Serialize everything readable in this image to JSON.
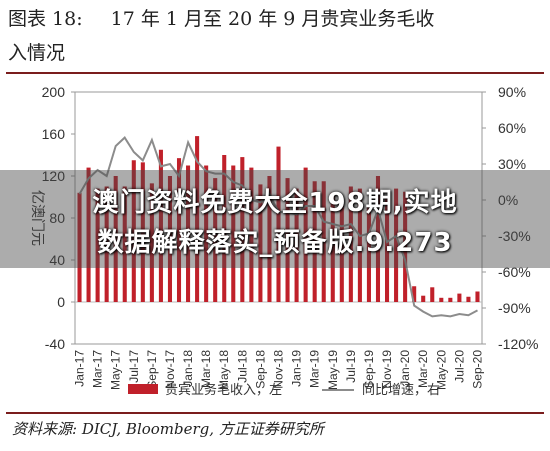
{
  "figure": {
    "label": "图表 18:",
    "title_line1": "17 年 1 月至 20 年 9 月贵宾业务毛收",
    "title_line2": "入情况",
    "source": "资料来源: DICJ, Bloomberg, 方正证券研究所"
  },
  "overlay": {
    "line1": "澳门资料免费大全198期,实地",
    "line2": "数据解释落实_预备版.9.273"
  },
  "colors": {
    "bar": "#c0202a",
    "line": "#8c8c8c",
    "rule": "#7a1d1d"
  },
  "chart_data": {
    "type": "bar",
    "title": "",
    "ylabel": "亿澳门元",
    "ylim": [
      -40,
      200
    ],
    "y_ticks": [
      -40,
      0,
      40,
      80,
      120,
      160,
      200
    ],
    "y2lim": [
      -1.2,
      0.9
    ],
    "y2_ticks": [
      "90%",
      "60%",
      "30%",
      "0%",
      "-30%",
      "-60%",
      "-90%",
      "-120%"
    ],
    "y2_tick_values": [
      0.9,
      0.6,
      0.3,
      0.0,
      -0.3,
      -0.6,
      -0.9,
      -1.2
    ],
    "grid": false,
    "legend_position": "bottom",
    "x_tick_labels": [
      "Jan-17",
      "Mar-17",
      "May-17",
      "Jul-17",
      "Sep-17",
      "Nov-17",
      "Jan-18",
      "Mar-18",
      "May-18",
      "Jul-18",
      "Sep-18",
      "Nov-18",
      "Jan-19",
      "Mar-19",
      "May-19",
      "Jul-19",
      "Sep-19",
      "Nov-19",
      "Jan-20",
      "Mar-20",
      "May-20",
      "Jul-20",
      "Sep-20"
    ],
    "categories": [
      "Jan-17",
      "Feb-17",
      "Mar-17",
      "Apr-17",
      "May-17",
      "Jun-17",
      "Jul-17",
      "Aug-17",
      "Sep-17",
      "Oct-17",
      "Nov-17",
      "Dec-17",
      "Jan-18",
      "Feb-18",
      "Mar-18",
      "Apr-18",
      "May-18",
      "Jun-18",
      "Jul-18",
      "Aug-18",
      "Sep-18",
      "Oct-18",
      "Nov-18",
      "Dec-18",
      "Jan-19",
      "Feb-19",
      "Mar-19",
      "Apr-19",
      "May-19",
      "Jun-19",
      "Jul-19",
      "Aug-19",
      "Sep-19",
      "Oct-19",
      "Nov-19",
      "Dec-19",
      "Jan-20",
      "Feb-20",
      "Mar-20",
      "Apr-20",
      "May-20",
      "Jun-20",
      "Jul-20",
      "Aug-20",
      "Sep-20"
    ],
    "series": [
      {
        "name": "贵宾业务毛收入，左",
        "type": "bar",
        "axis": "left",
        "values": [
          104,
          128,
          108,
          110,
          120,
          110,
          135,
          133,
          113,
          145,
          120,
          137,
          130,
          158,
          130,
          118,
          140,
          130,
          138,
          128,
          112,
          120,
          148,
          118,
          108,
          128,
          115,
          115,
          104,
          98,
          110,
          108,
          92,
          120,
          100,
          108,
          105,
          15,
          6,
          14,
          4,
          4,
          8,
          5,
          10
        ]
      },
      {
        "name": "同比增速，右",
        "type": "line",
        "axis": "right",
        "values": [
          0.05,
          0.18,
          0.25,
          0.2,
          0.45,
          0.52,
          0.4,
          0.33,
          0.5,
          0.28,
          0.3,
          0.2,
          0.48,
          0.32,
          0.24,
          0.22,
          0.22,
          0.15,
          0.12,
          0.0,
          -0.02,
          0.05,
          -0.1,
          -0.1,
          -0.12,
          -0.05,
          -0.05,
          -0.18,
          -0.2,
          -0.22,
          -0.2,
          -0.3,
          -0.28,
          -0.08,
          -0.35,
          -0.3,
          -0.5,
          -0.88,
          -0.93,
          -0.97,
          -0.96,
          -0.97,
          -0.95,
          -0.96,
          -0.92
        ]
      }
    ]
  }
}
